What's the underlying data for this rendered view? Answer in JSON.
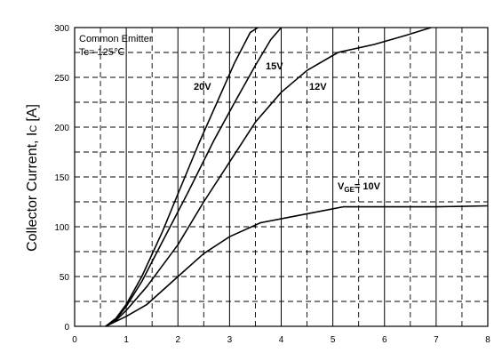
{
  "chart_data": {
    "type": "line",
    "ylabel": "Collector Current, I",
    "ylabel_sub": "C",
    "ylabel_unit": "[A]",
    "xlim": [
      0,
      8
    ],
    "ylim": [
      0,
      300
    ],
    "xticks": [
      0,
      1,
      2,
      3,
      4,
      5,
      6,
      7,
      8
    ],
    "yticks": [
      0,
      50,
      100,
      150,
      200,
      250,
      300
    ],
    "grid": "dashed",
    "annotations": {
      "line1": "Common Emitter",
      "line2": "Tc= 125℃"
    },
    "series": [
      {
        "name": "20V",
        "x": [
          0.6,
          0.8,
          1.0,
          1.3,
          1.7,
          2.0,
          2.4,
          2.8,
          3.1,
          3.4,
          3.55
        ],
        "y": [
          0,
          8,
          22,
          50,
          95,
          133,
          183,
          230,
          265,
          295,
          300
        ]
      },
      {
        "name": "15V",
        "x": [
          0.6,
          0.8,
          1.0,
          1.3,
          1.7,
          2.2,
          2.7,
          3.1,
          3.5,
          3.8,
          4.0
        ],
        "y": [
          0,
          7,
          20,
          45,
          85,
          135,
          187,
          225,
          262,
          288,
          300
        ]
      },
      {
        "name": "12V",
        "x": [
          0.6,
          0.8,
          1.0,
          1.4,
          2.0,
          2.5,
          3.0,
          3.5,
          4.0,
          4.5,
          5.1,
          5.8,
          6.4,
          6.9
        ],
        "y": [
          0,
          6,
          16,
          40,
          82,
          125,
          165,
          205,
          235,
          257,
          275,
          283,
          292,
          300
        ]
      },
      {
        "name": "V",
        "name_sub": "GE",
        "name_tail": "= 10V",
        "x": [
          0.6,
          1.0,
          1.4,
          2.0,
          2.5,
          3.0,
          3.6,
          4.2,
          5.2,
          6.0,
          7.0,
          8.0
        ],
        "y": [
          0,
          10,
          22,
          50,
          73,
          90,
          104,
          110,
          120,
          120,
          120,
          121
        ]
      }
    ]
  }
}
